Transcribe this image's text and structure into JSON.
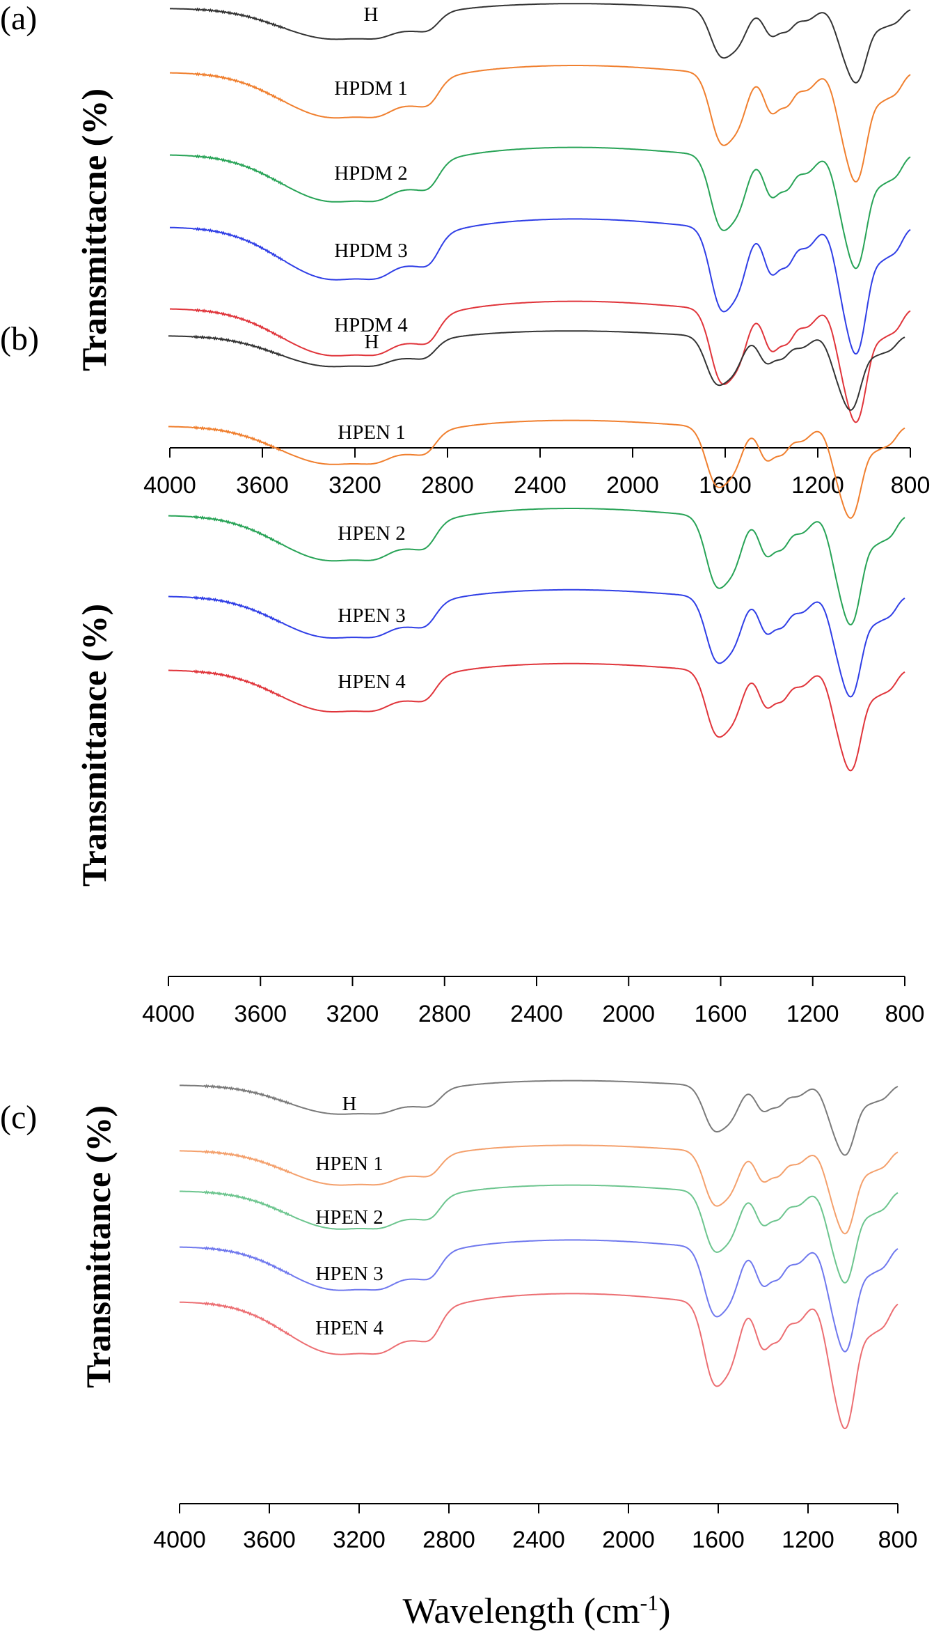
{
  "figure": {
    "xlabel": "Wavelength (cm",
    "xlabel_sup": "-1",
    "xlabel_close": ")"
  },
  "chart_data": [
    {
      "type": "line",
      "panel_label": "(a)",
      "ylabel": "Transmittacne (%)",
      "xlabel": "Wavelength (cm-1)",
      "xlim": [
        4000,
        800
      ],
      "xticks": [
        "4000",
        "3600",
        "3200",
        "2800",
        "2400",
        "2000",
        "1600",
        "1200",
        "800"
      ],
      "series": [
        {
          "name": "H",
          "color": "#333333"
        },
        {
          "name": "HPDM 1",
          "color": "#f07f2e"
        },
        {
          "name": "HPDM 2",
          "color": "#27a356"
        },
        {
          "name": "HPDM 3",
          "color": "#2f3ee6"
        },
        {
          "name": "HPDM 4",
          "color": "#e0343a"
        }
      ]
    },
    {
      "type": "line",
      "panel_label": "(b)",
      "ylabel": "Transmittance (%)",
      "xlabel": "Wavelength (cm-1)",
      "xlim": [
        4000,
        800
      ],
      "xticks": [
        "4000",
        "3600",
        "3200",
        "2800",
        "2400",
        "2000",
        "1600",
        "1200",
        "800"
      ],
      "series": [
        {
          "name": "H",
          "color": "#333333"
        },
        {
          "name": "HPEN 1",
          "color": "#f07f2e"
        },
        {
          "name": "HPEN 2",
          "color": "#27a356"
        },
        {
          "name": "HPEN 3",
          "color": "#2f3ee6"
        },
        {
          "name": "HPEN 4",
          "color": "#e0343a"
        }
      ]
    },
    {
      "type": "line",
      "panel_label": "(c)",
      "ylabel": "Transmittance (%)",
      "xlabel": "Wavelength (cm-1)",
      "xlim": [
        4000,
        800
      ],
      "xticks": [
        "4000",
        "3600",
        "3200",
        "2800",
        "2400",
        "2000",
        "1600",
        "1200",
        "800"
      ],
      "series": [
        {
          "name": "H",
          "color": "#7a7a7a"
        },
        {
          "name": "HPEN 1",
          "color": "#f4a06c"
        },
        {
          "name": "HPEN 2",
          "color": "#6cc58e"
        },
        {
          "name": "HPEN 3",
          "color": "#6f78ee"
        },
        {
          "name": "HPEN 4",
          "color": "#ec6e72"
        }
      ]
    }
  ]
}
